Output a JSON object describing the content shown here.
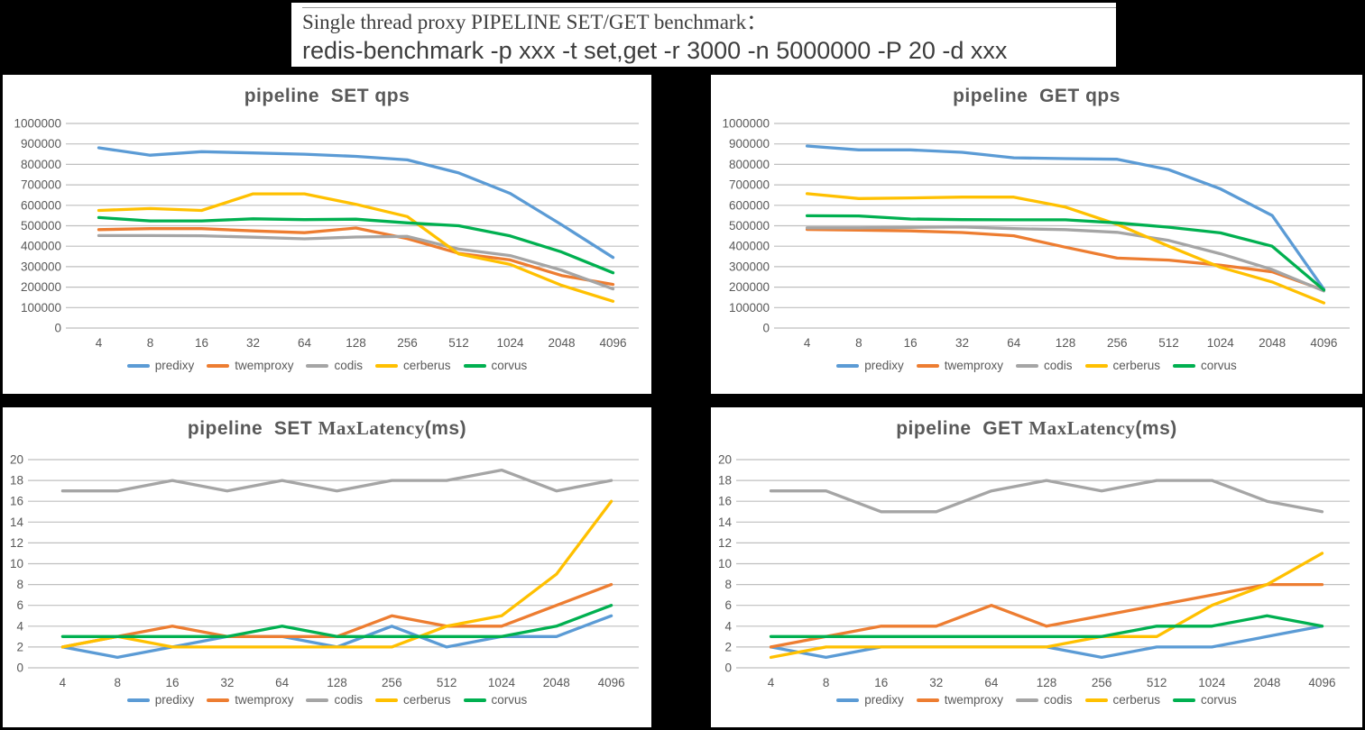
{
  "banner": {
    "line1": "Single thread proxy PIPELINE SET/GET benchmark：",
    "line2": "redis-benchmark -p xxx -t set,get -r 3000 -n 5000000 -P 20 -d xxx"
  },
  "colors": {
    "predixy": "#5B9BD5",
    "twemproxy": "#ED7D31",
    "codis": "#A5A5A5",
    "cerberus": "#FFC000",
    "corvus": "#00B050",
    "gridline": "#BFBFBF",
    "axis_text": "#595959"
  },
  "chart_data": [
    {
      "type": "line",
      "id": "set-qps",
      "title": {
        "prefix": "pipeline  SET ",
        "serif": "",
        "suffix": "qps"
      },
      "categories": [
        "4",
        "8",
        "16",
        "32",
        "64",
        "128",
        "256",
        "512",
        "1024",
        "2048",
        "4096"
      ],
      "ylim": [
        0,
        1000000
      ],
      "ytick": 100000,
      "grid": true,
      "legend_position": "bottom",
      "xlabel": "",
      "ylabel": "",
      "series": [
        {
          "name": "predixy",
          "color": "#5B9BD5",
          "values": [
            881000,
            845000,
            862000,
            856000,
            850000,
            839000,
            822000,
            758000,
            658000,
            505000,
            345000
          ]
        },
        {
          "name": "twemproxy",
          "color": "#ED7D31",
          "values": [
            481000,
            486000,
            486000,
            475000,
            466000,
            489000,
            437000,
            365000,
            333000,
            257000,
            213000
          ]
        },
        {
          "name": "codis",
          "color": "#A5A5A5",
          "values": [
            452000,
            452000,
            451000,
            444000,
            436000,
            445000,
            448000,
            386000,
            354000,
            283000,
            191000
          ]
        },
        {
          "name": "cerberus",
          "color": "#FFC000",
          "values": [
            575000,
            584000,
            575000,
            656000,
            656000,
            605000,
            545000,
            362000,
            311000,
            209000,
            131000
          ]
        },
        {
          "name": "corvus",
          "color": "#00B050",
          "values": [
            540000,
            524000,
            524000,
            534000,
            530000,
            532000,
            514000,
            500000,
            450000,
            372000,
            270000
          ]
        }
      ]
    },
    {
      "type": "line",
      "id": "get-qps",
      "title": {
        "prefix": "pipeline  GET ",
        "serif": "",
        "suffix": "qps"
      },
      "categories": [
        "4",
        "8",
        "16",
        "32",
        "64",
        "128",
        "256",
        "512",
        "1024",
        "2048",
        "4096"
      ],
      "ylim": [
        0,
        1000000
      ],
      "ytick": 100000,
      "grid": true,
      "legend_position": "bottom",
      "xlabel": "",
      "ylabel": "",
      "series": [
        {
          "name": "predixy",
          "color": "#5B9BD5",
          "values": [
            890000,
            871000,
            871000,
            859000,
            832000,
            828000,
            825000,
            774000,
            680000,
            550000,
            190000
          ]
        },
        {
          "name": "twemproxy",
          "color": "#ED7D31",
          "values": [
            482000,
            479000,
            475000,
            467000,
            451000,
            395000,
            342000,
            332000,
            307000,
            275000,
            185000
          ]
        },
        {
          "name": "codis",
          "color": "#A5A5A5",
          "values": [
            490000,
            490000,
            492000,
            494000,
            486000,
            481000,
            468000,
            428000,
            363000,
            286000,
            181000
          ]
        },
        {
          "name": "cerberus",
          "color": "#FFC000",
          "values": [
            657000,
            633000,
            636000,
            640000,
            640000,
            591000,
            507000,
            400000,
            297000,
            225000,
            123000
          ]
        },
        {
          "name": "corvus",
          "color": "#00B050",
          "values": [
            549000,
            548000,
            533000,
            530000,
            529000,
            529000,
            514000,
            493000,
            465000,
            400000,
            186000
          ]
        }
      ]
    },
    {
      "type": "line",
      "id": "set-maxlatency",
      "title": {
        "prefix": "pipeline  SET ",
        "serif": "MaxLatency",
        "suffix": "(ms)"
      },
      "categories": [
        "4",
        "8",
        "16",
        "32",
        "64",
        "128",
        "256",
        "512",
        "1024",
        "2048",
        "4096"
      ],
      "ylim": [
        0,
        20
      ],
      "ytick": 2,
      "grid": true,
      "legend_position": "bottom",
      "xlabel": "",
      "ylabel": "",
      "series": [
        {
          "name": "predixy",
          "color": "#5B9BD5",
          "values": [
            2,
            1,
            2,
            3,
            3,
            2,
            4,
            2,
            3,
            3,
            5
          ]
        },
        {
          "name": "twemproxy",
          "color": "#ED7D31",
          "values": [
            2,
            3,
            4,
            3,
            3,
            3,
            5,
            4,
            4,
            6,
            8
          ]
        },
        {
          "name": "codis",
          "color": "#A5A5A5",
          "values": [
            17,
            17,
            18,
            17,
            18,
            17,
            18,
            18,
            19,
            17,
            18
          ]
        },
        {
          "name": "cerberus",
          "color": "#FFC000",
          "values": [
            2,
            3,
            2,
            2,
            2,
            2,
            2,
            4,
            5,
            9,
            16
          ]
        },
        {
          "name": "corvus",
          "color": "#00B050",
          "values": [
            3,
            3,
            3,
            3,
            4,
            3,
            3,
            3,
            3,
            4,
            6
          ]
        }
      ]
    },
    {
      "type": "line",
      "id": "get-maxlatency",
      "title": {
        "prefix": "pipeline  GET ",
        "serif": "MaxLatency",
        "suffix": "(ms)"
      },
      "categories": [
        "4",
        "8",
        "16",
        "32",
        "64",
        "128",
        "256",
        "512",
        "1024",
        "2048",
        "4096"
      ],
      "ylim": [
        0,
        20
      ],
      "ytick": 2,
      "grid": true,
      "legend_position": "bottom",
      "xlabel": "",
      "ylabel": "",
      "series": [
        {
          "name": "predixy",
          "color": "#5B9BD5",
          "values": [
            2,
            1,
            2,
            2,
            2,
            2,
            1,
            2,
            2,
            3,
            4
          ]
        },
        {
          "name": "twemproxy",
          "color": "#ED7D31",
          "values": [
            2,
            3,
            4,
            4,
            6,
            4,
            5,
            6,
            7,
            8,
            8
          ]
        },
        {
          "name": "codis",
          "color": "#A5A5A5",
          "values": [
            17,
            17,
            15,
            15,
            17,
            18,
            17,
            18,
            18,
            16,
            15
          ]
        },
        {
          "name": "cerberus",
          "color": "#FFC000",
          "values": [
            1,
            2,
            2,
            2,
            2,
            2,
            3,
            3,
            6,
            8,
            11
          ]
        },
        {
          "name": "corvus",
          "color": "#00B050",
          "values": [
            3,
            3,
            3,
            3,
            3,
            3,
            3,
            4,
            4,
            5,
            4
          ]
        }
      ]
    }
  ]
}
